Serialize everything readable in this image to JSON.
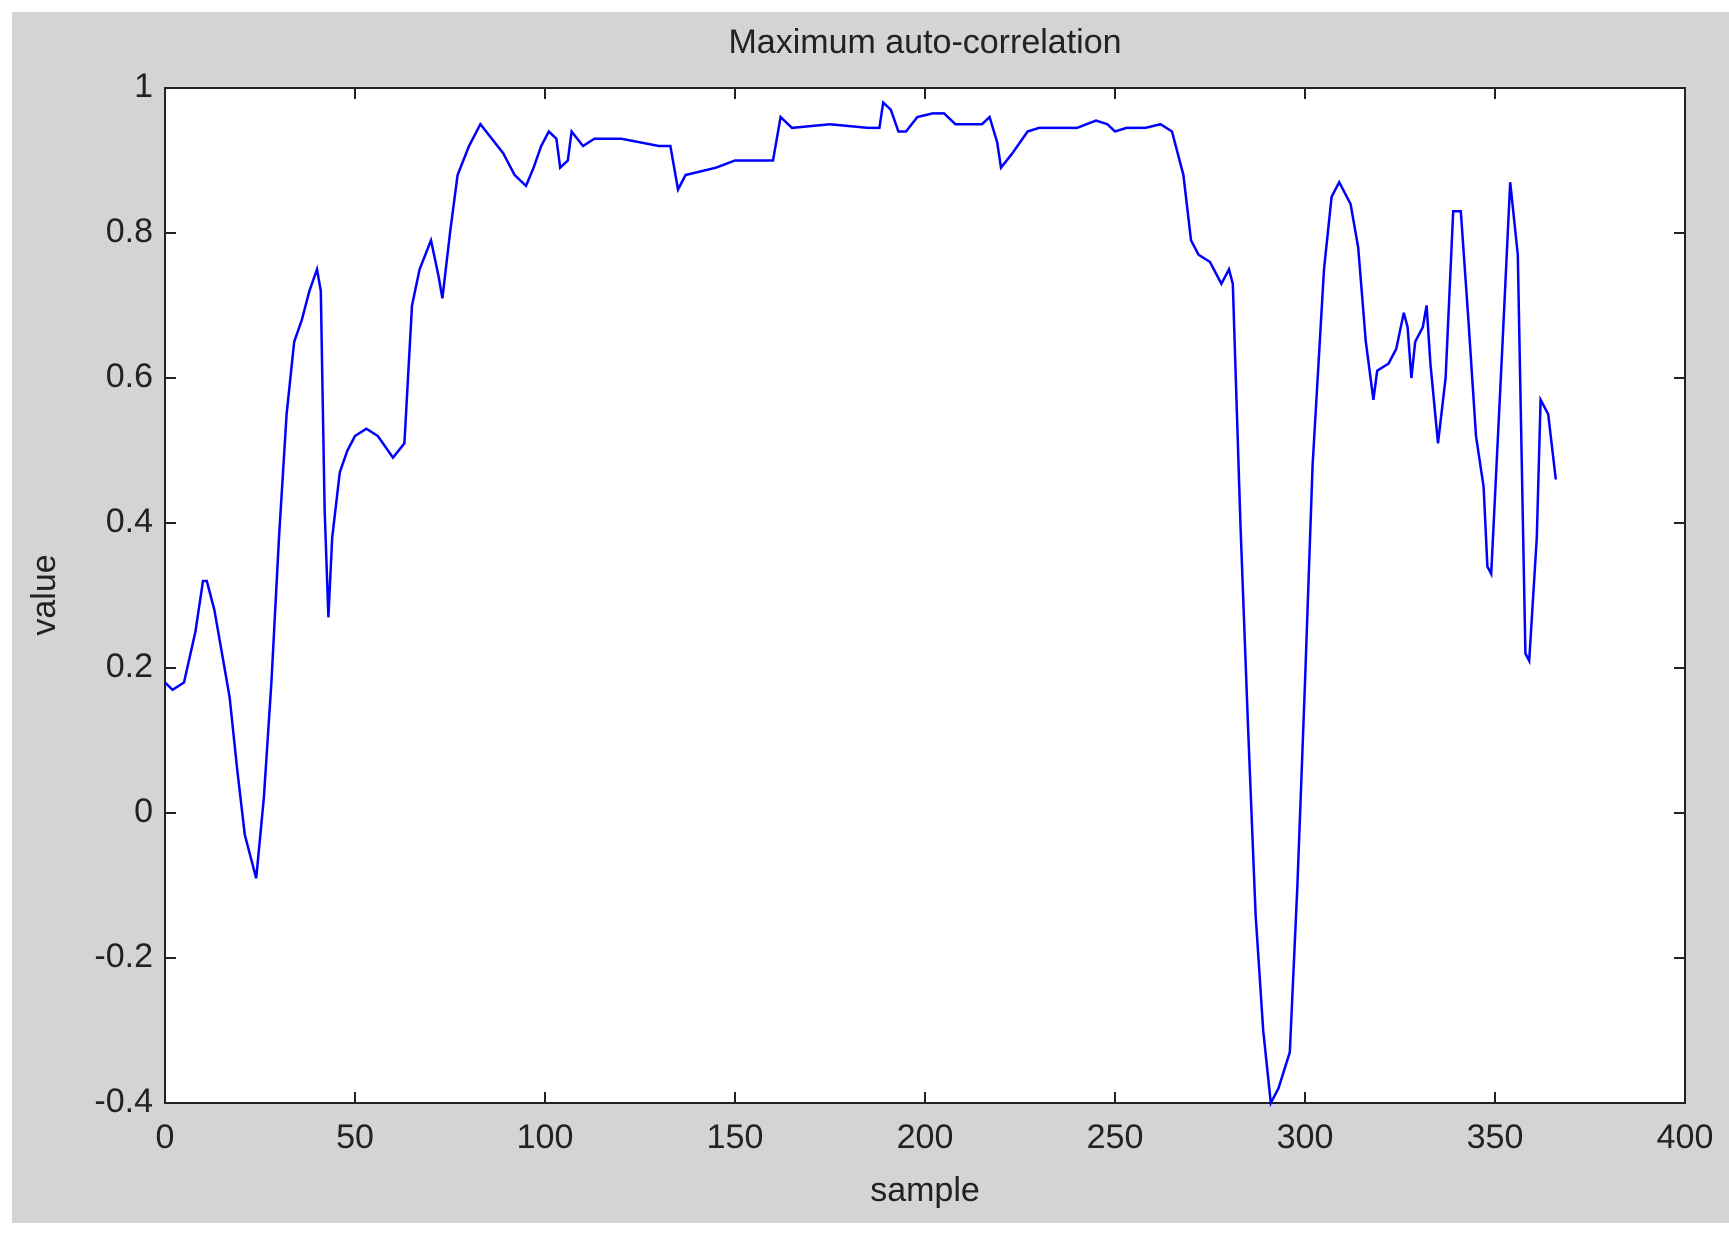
{
  "chart_data": {
    "type": "line",
    "title": "Maximum auto-correlation",
    "x_label": "sample",
    "y_label": "value",
    "color": "#0000ff",
    "xlim": [
      0,
      400
    ],
    "xticks": [
      0,
      50,
      100,
      150,
      200,
      250,
      300,
      350,
      400
    ],
    "ylim": [
      -0.4,
      1
    ],
    "yticks": [
      -0.4,
      -0.2,
      0,
      0.2,
      0.4,
      0.6,
      0.8,
      1
    ],
    "x": [
      0,
      2,
      5,
      8,
      10,
      11,
      13,
      15,
      17,
      19,
      21,
      23,
      24,
      26,
      28,
      30,
      32,
      34,
      36,
      38,
      40,
      41,
      42,
      43,
      44,
      46,
      48,
      50,
      53,
      56,
      60,
      63,
      65,
      67,
      70,
      72,
      73,
      75,
      77,
      80,
      83,
      86,
      89,
      92,
      95,
      97,
      99,
      101,
      103,
      104,
      106,
      107,
      110,
      113,
      120,
      130,
      133,
      135,
      137,
      145,
      150,
      158,
      160,
      162,
      165,
      175,
      185,
      188,
      189,
      191,
      193,
      195,
      198,
      202,
      205,
      208,
      215,
      217,
      219,
      220,
      223,
      227,
      230,
      240,
      245,
      248,
      250,
      253,
      258,
      262,
      265,
      268,
      270,
      272,
      275,
      278,
      280,
      281,
      283,
      285,
      287,
      289,
      291,
      293,
      296,
      298,
      300,
      302,
      305,
      307,
      309,
      312,
      314,
      316,
      318,
      319,
      322,
      324,
      326,
      327,
      328,
      329,
      331,
      332,
      333,
      335,
      337,
      339,
      341,
      343,
      345,
      347,
      348,
      349,
      352,
      354,
      356,
      358,
      359,
      361,
      362,
      364,
      366
    ],
    "values": [
      0.18,
      0.17,
      0.18,
      0.25,
      0.32,
      0.32,
      0.28,
      0.22,
      0.16,
      0.06,
      -0.03,
      -0.07,
      -0.09,
      0.02,
      0.18,
      0.38,
      0.55,
      0.65,
      0.68,
      0.72,
      0.75,
      0.72,
      0.42,
      0.27,
      0.38,
      0.47,
      0.5,
      0.52,
      0.53,
      0.52,
      0.49,
      0.51,
      0.7,
      0.75,
      0.79,
      0.74,
      0.71,
      0.8,
      0.88,
      0.92,
      0.95,
      0.93,
      0.91,
      0.88,
      0.865,
      0.89,
      0.92,
      0.94,
      0.93,
      0.89,
      0.9,
      0.94,
      0.92,
      0.93,
      0.93,
      0.92,
      0.92,
      0.86,
      0.88,
      0.89,
      0.9,
      0.9,
      0.9,
      0.96,
      0.945,
      0.95,
      0.945,
      0.945,
      0.98,
      0.97,
      0.94,
      0.94,
      0.96,
      0.965,
      0.965,
      0.95,
      0.95,
      0.96,
      0.925,
      0.89,
      0.91,
      0.94,
      0.945,
      0.945,
      0.955,
      0.95,
      0.94,
      0.945,
      0.945,
      0.95,
      0.94,
      0.88,
      0.79,
      0.77,
      0.76,
      0.73,
      0.75,
      0.73,
      0.4,
      0.12,
      -0.14,
      -0.3,
      -0.4,
      -0.38,
      -0.33,
      -0.1,
      0.18,
      0.48,
      0.75,
      0.85,
      0.87,
      0.84,
      0.78,
      0.65,
      0.57,
      0.61,
      0.62,
      0.64,
      0.69,
      0.67,
      0.6,
      0.65,
      0.67,
      0.7,
      0.62,
      0.51,
      0.6,
      0.83,
      0.83,
      0.68,
      0.52,
      0.45,
      0.34,
      0.33,
      0.65,
      0.87,
      0.77,
      0.22,
      0.21,
      0.38,
      0.57,
      0.55,
      0.46
    ]
  }
}
